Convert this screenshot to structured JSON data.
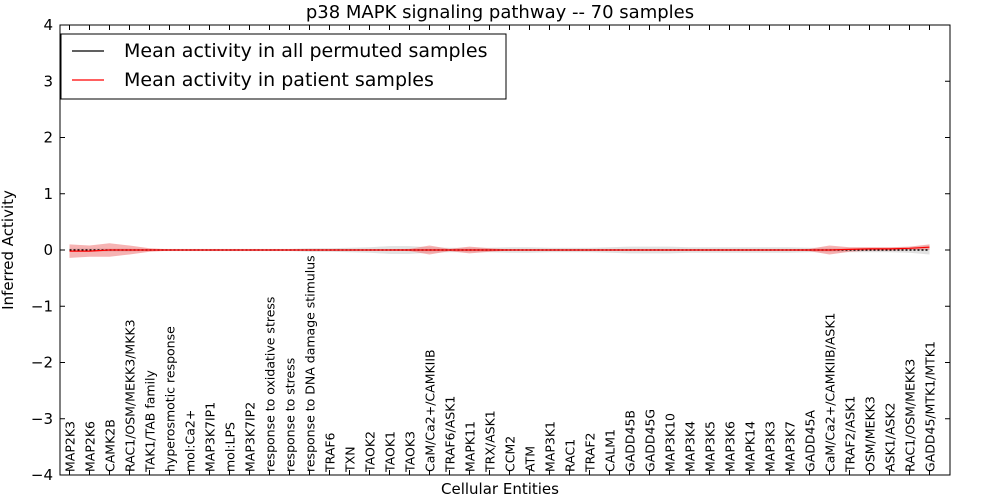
{
  "chart_data": {
    "type": "line",
    "title": "p38 MAPK signaling pathway -- 70 samples",
    "xlabel": "Cellular Entities",
    "ylabel": "Inferred Activity",
    "ylim": [
      -4,
      4
    ],
    "yticks": [
      -4,
      -3,
      -2,
      -1,
      0,
      1,
      2,
      3,
      4
    ],
    "ytick_labels": [
      "−4",
      "−3",
      "−2",
      "−1",
      "0",
      "1",
      "2",
      "3",
      "4"
    ],
    "legend_position": "upper-left",
    "categories": [
      "MAP2K3",
      "MAP2K6",
      "CAMK2B",
      "RAC1/OSM/MEKK3/MKK3",
      "TAK1/TAB family",
      "hyperosmotic response",
      "mol:Ca2+",
      "MAP3K7IP1",
      "mol:LPS",
      "MAP3K7IP2",
      "response to oxidative stress",
      "response to stress",
      "response to DNA damage stimulus",
      "TRAF6",
      "TXN",
      "TAOK2",
      "TAOK1",
      "TAOK3",
      "CaM/Ca2+/CAMKIIB",
      "TRAF6/ASK1",
      "MAPK11",
      "TRX/ASK1",
      "CCM2",
      "ATM",
      "MAP3K1",
      "RAC1",
      "TRAF2",
      "CALM1",
      "GADD45B",
      "GADD45G",
      "MAP3K10",
      "MAP3K4",
      "MAP3K5",
      "MAP3K6",
      "MAPK14",
      "MAP3K3",
      "MAP3K7",
      "GADD45A",
      "CaM/Ca2+/CAMKIIB/ASK1",
      "TRAF2/ASK1",
      "OSM/MEKK3",
      "ASK1/ASK2",
      "RAC1/OSM/MEKK3",
      "GADD45/MTK1/MTK1"
    ],
    "series": [
      {
        "name": "Mean activity in all permuted samples",
        "color": "#000000",
        "band_color": "#c8c8c8",
        "values": [
          0,
          0,
          0,
          0,
          0,
          0,
          0,
          0,
          0,
          0,
          0,
          0,
          0,
          0,
          0,
          0,
          0,
          0,
          0,
          0,
          0,
          0,
          0,
          0,
          0,
          0,
          0,
          0,
          0,
          0,
          0,
          0,
          0,
          0,
          0,
          0,
          0,
          0,
          0,
          0,
          0,
          0,
          0,
          0
        ],
        "band_half": [
          0.03,
          0.03,
          0.03,
          0.03,
          0.02,
          0.02,
          0.02,
          0.02,
          0.02,
          0.02,
          0.02,
          0.02,
          0.03,
          0.03,
          0.04,
          0.05,
          0.07,
          0.07,
          0.05,
          0.04,
          0.04,
          0.04,
          0.05,
          0.05,
          0.04,
          0.04,
          0.04,
          0.05,
          0.06,
          0.06,
          0.06,
          0.05,
          0.05,
          0.05,
          0.05,
          0.05,
          0.05,
          0.04,
          0.04,
          0.04,
          0.04,
          0.04,
          0.05,
          0.08
        ]
      },
      {
        "name": "Mean activity in patient samples",
        "color": "#ff0000",
        "band_color": "#f08080",
        "values": [
          -0.02,
          -0.02,
          0,
          0,
          0,
          0,
          0,
          0,
          0,
          0,
          0,
          0,
          0,
          0,
          0,
          0,
          0,
          0,
          0,
          0,
          0,
          0,
          0,
          0,
          0,
          0,
          0,
          0,
          0,
          0,
          0,
          0,
          0,
          0,
          0,
          0,
          0,
          0,
          0,
          0.01,
          0.02,
          0.02,
          0.03,
          0.05
        ],
        "band_half": [
          0.12,
          0.1,
          0.12,
          0.08,
          0.03,
          0.01,
          0.01,
          0.01,
          0.01,
          0.01,
          0.01,
          0.01,
          0.01,
          0.01,
          0.01,
          0.01,
          0.01,
          0.02,
          0.08,
          0.02,
          0.06,
          0.03,
          0.01,
          0.01,
          0.01,
          0.01,
          0.01,
          0.01,
          0.01,
          0.01,
          0.01,
          0.01,
          0.01,
          0.01,
          0.01,
          0.01,
          0.01,
          0.02,
          0.08,
          0.04,
          0.03,
          0.03,
          0.03,
          0.05
        ]
      }
    ]
  }
}
